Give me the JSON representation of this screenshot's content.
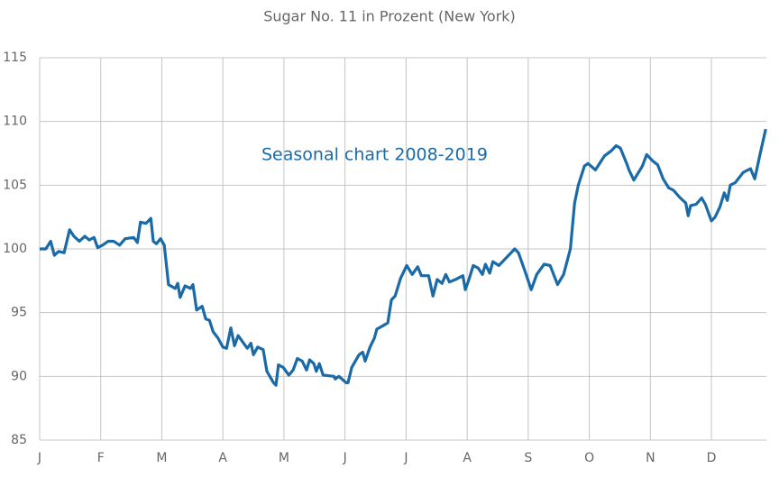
{
  "chart_data": {
    "type": "line",
    "title": "Sugar No. 11 in Prozent (New York)",
    "annotation": "Seasonal chart 2008-2019",
    "x": [
      0,
      0.1,
      0.18,
      0.24,
      0.31,
      0.4,
      0.49,
      0.56,
      0.65,
      0.74,
      0.81,
      0.89,
      0.95,
      1.03,
      1.12,
      1.21,
      1.31,
      1.4,
      1.54,
      1.6,
      1.65,
      1.74,
      1.82,
      1.86,
      1.91,
      1.98,
      2.04,
      2.11,
      2.22,
      2.26,
      2.3,
      2.38,
      2.47,
      2.51,
      2.57,
      2.66,
      2.72,
      2.78,
      2.84,
      2.92,
      3.0,
      3.06,
      3.13,
      3.19,
      3.25,
      3.34,
      3.4,
      3.46,
      3.5,
      3.57,
      3.66,
      3.72,
      3.83,
      3.87,
      3.91,
      3.99,
      4.08,
      4.15,
      4.22,
      4.3,
      4.37,
      4.42,
      4.49,
      4.53,
      4.58,
      4.64,
      4.82,
      4.84,
      4.9,
      5.02,
      5.05,
      5.11,
      5.23,
      5.29,
      5.33,
      5.41,
      5.48,
      5.52,
      5.63,
      5.7,
      5.76,
      5.82,
      5.91,
      6.01,
      6.1,
      6.19,
      6.25,
      6.37,
      6.44,
      6.51,
      6.59,
      6.65,
      6.71,
      6.81,
      6.93,
      6.97,
      7.03,
      7.1,
      7.18,
      7.25,
      7.3,
      7.37,
      7.42,
      7.52,
      7.62,
      7.78,
      7.84,
      7.95,
      8.05,
      8.14,
      8.26,
      8.36,
      8.48,
      8.58,
      8.69,
      8.76,
      8.82,
      8.92,
      8.98,
      9.1,
      9.25,
      9.36,
      9.44,
      9.51,
      9.62,
      9.65,
      9.73,
      9.87,
      9.94,
      10.04,
      10.12,
      10.21,
      10.3,
      10.38,
      10.49,
      10.58,
      10.62,
      10.66,
      10.75,
      10.84,
      10.9,
      11.0,
      11.06,
      11.14,
      11.21,
      11.26,
      11.31,
      11.39,
      11.52,
      11.64,
      11.71,
      11.8,
      11.89
    ],
    "series": [
      {
        "name": "Sugar No. 11",
        "color": "#1a6aa8",
        "values": [
          100,
          100,
          100.6,
          99.5,
          99.8,
          99.7,
          101.5,
          101,
          100.6,
          101,
          100.7,
          100.9,
          100.1,
          100.3,
          100.6,
          100.6,
          100.3,
          100.8,
          100.9,
          100.5,
          102.1,
          102,
          102.4,
          100.6,
          100.4,
          100.8,
          100.3,
          97.2,
          96.9,
          97.3,
          96.2,
          97.1,
          96.9,
          97.2,
          95.2,
          95.5,
          94.5,
          94.4,
          93.5,
          93,
          92.3,
          92.2,
          93.8,
          92.4,
          93.2,
          92.6,
          92.2,
          92.6,
          91.7,
          92.3,
          92.1,
          90.4,
          89.5,
          89.3,
          90.9,
          90.7,
          90.1,
          90.5,
          91.4,
          91.2,
          90.5,
          91.3,
          91,
          90.4,
          91,
          90.1,
          90,
          89.8,
          90,
          89.5,
          89.5,
          90.7,
          91.7,
          91.9,
          91.2,
          92.3,
          93,
          93.7,
          94,
          94.2,
          96,
          96.3,
          97.7,
          98.7,
          98,
          98.6,
          97.9,
          97.9,
          96.3,
          97.6,
          97.3,
          98,
          97.4,
          97.6,
          97.9,
          96.8,
          97.6,
          98.7,
          98.5,
          98,
          98.8,
          98.1,
          99,
          98.7,
          99.2,
          100,
          99.7,
          98.2,
          96.8,
          98,
          98.8,
          98.7,
          97.2,
          98,
          100,
          103.6,
          105,
          106.5,
          106.7,
          106.2,
          107.3,
          107.7,
          108.1,
          107.9,
          106.6,
          106.2,
          105.4,
          106.5,
          107.4,
          106.9,
          106.6,
          105.5,
          104.8,
          104.6,
          104,
          103.6,
          102.6,
          103.4,
          103.5,
          104,
          103.5,
          102.2,
          102.5,
          103.3,
          104.4,
          103.8,
          105,
          105.2,
          106,
          106.3,
          105.5,
          107.5,
          109.4
        ]
      }
    ],
    "xlim": [
      0,
      11.9
    ],
    "xticks": [
      {
        "value": 0,
        "label": "J"
      },
      {
        "value": 1,
        "label": "F"
      },
      {
        "value": 2,
        "label": "M"
      },
      {
        "value": 3,
        "label": "A"
      },
      {
        "value": 4,
        "label": "M"
      },
      {
        "value": 5,
        "label": "J"
      },
      {
        "value": 6,
        "label": "J"
      },
      {
        "value": 7,
        "label": "A"
      },
      {
        "value": 8,
        "label": "S"
      },
      {
        "value": 9,
        "label": "O"
      },
      {
        "value": 10,
        "label": "N"
      },
      {
        "value": 11,
        "label": "D"
      }
    ],
    "ylim": [
      85,
      115
    ],
    "yticks": [
      85,
      90,
      95,
      100,
      105,
      110,
      115
    ],
    "grid": true
  }
}
